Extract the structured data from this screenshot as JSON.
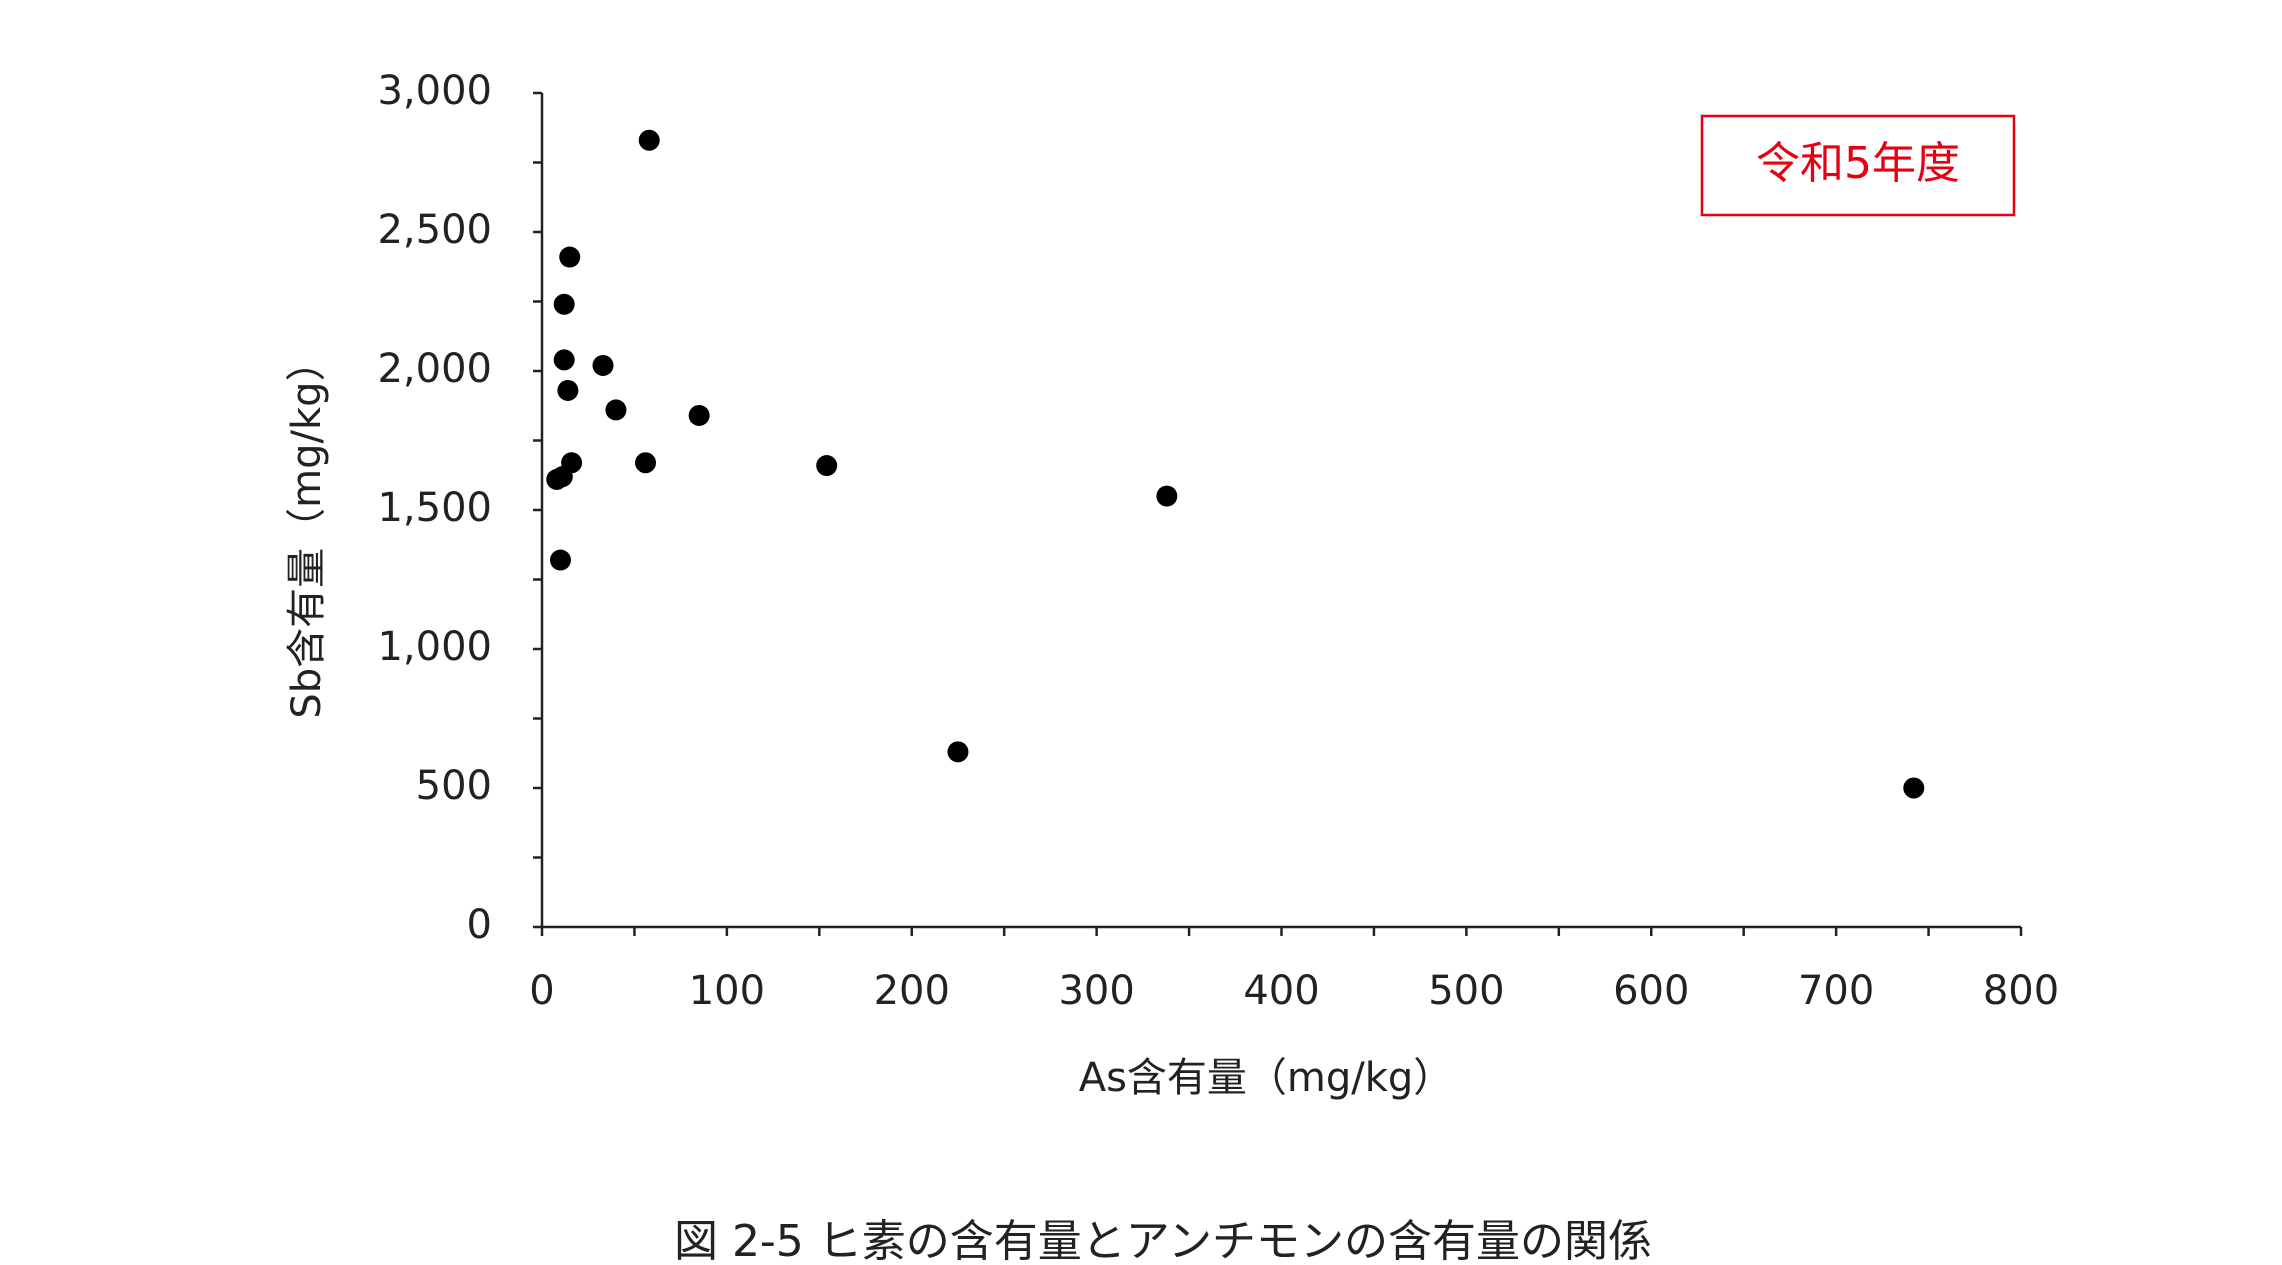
{
  "chart_data": {
    "type": "scatter",
    "caption": "図 2-5 ヒ素の含有量とアンチモンの含有量の関係",
    "annotation": "令和5年度",
    "x_label": "As含有量（mg/kg）",
    "y_label": "Sb含有量（mg/kg）",
    "color": "#000000",
    "annotation_color": "#e60012",
    "x": [
      58,
      15,
      12,
      12,
      33,
      14,
      40,
      85,
      16,
      56,
      154,
      11,
      8,
      10,
      338,
      225,
      742
    ],
    "values": [
      2830,
      2410,
      2240,
      2040,
      2020,
      1930,
      1860,
      1840,
      1670,
      1670,
      1660,
      1620,
      1610,
      1320,
      1550,
      630,
      500
    ],
    "xlim": [
      0,
      800
    ],
    "xticks": [
      0,
      100,
      200,
      300,
      400,
      500,
      600,
      700,
      800
    ],
    "ylim": [
      0,
      3000
    ],
    "yticks": [
      0,
      500,
      {
        "value": 1000,
        "label": "1,000"
      },
      {
        "value": 1500,
        "label": "1,500"
      },
      {
        "value": 2000,
        "label": "2,000"
      },
      {
        "value": 2500,
        "label": "2,500"
      },
      {
        "value": 3000,
        "label": "3,000"
      }
    ]
  }
}
